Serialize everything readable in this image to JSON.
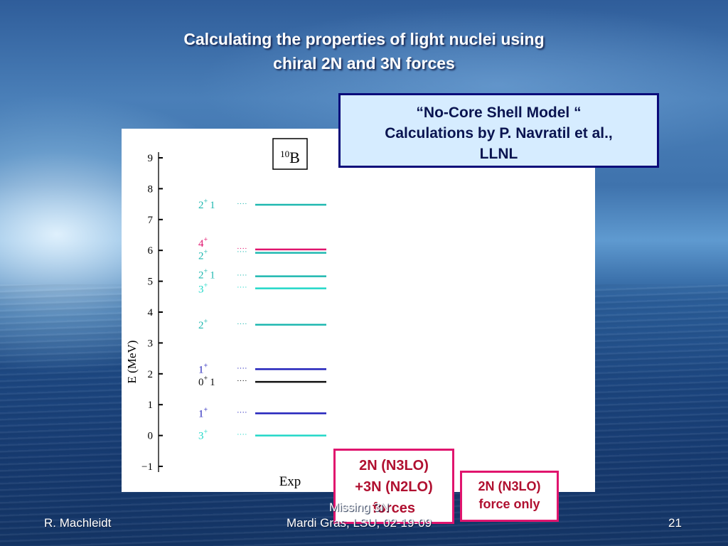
{
  "slide": {
    "title_line1": "Calculating the properties of light nuclei using",
    "title_line2": "chiral 2N and 3N forces",
    "callout_line1": "“No-Core Shell Model “",
    "callout_line2": "Calculations by P. Navratil et al.,",
    "callout_line3": "LLNL",
    "box1_line1": "2N (N3LO)",
    "box1_line2": "+3N (N2LO)",
    "box1_line3": "forces",
    "box2_line1": "2N (N3LO)",
    "box2_line2": "force only",
    "footer_left": "R. Machleidt",
    "footer_mid_line1": "Missing 3N",
    "footer_mid_line2": "Mardi Gras, LSU, 02-19-09",
    "footer_right": "21"
  },
  "chart_data": {
    "type": "level-scheme",
    "nucleus_label": "10B",
    "ylabel": "E (MeV)",
    "xlabel": "Exp",
    "ylim": [
      -1,
      9
    ],
    "yticks": [
      -1,
      0,
      1,
      2,
      3,
      4,
      5,
      6,
      7,
      8,
      9
    ],
    "levels": [
      {
        "energy": 0.0,
        "j": "3",
        "parity": "+",
        "t": "",
        "color": "#22d8c8"
      },
      {
        "energy": 0.72,
        "j": "1",
        "parity": "+",
        "t": "",
        "color": "#2222bb"
      },
      {
        "energy": 1.74,
        "j": "0",
        "parity": "+",
        "t": "1",
        "color": "#111111"
      },
      {
        "energy": 2.15,
        "j": "1",
        "parity": "+",
        "t": "",
        "color": "#2222bb"
      },
      {
        "energy": 3.59,
        "j": "2",
        "parity": "+",
        "t": "",
        "color": "#1fb8b0"
      },
      {
        "energy": 4.77,
        "j": "3",
        "parity": "+",
        "t": "",
        "color": "#22d8c8"
      },
      {
        "energy": 5.16,
        "j": "2",
        "parity": "+",
        "t": "1",
        "color": "#1fb8b0"
      },
      {
        "energy": 5.92,
        "j": "2",
        "parity": "+",
        "t": "",
        "color": "#1fb8b0"
      },
      {
        "energy": 6.03,
        "j": "4",
        "parity": "+",
        "t": "",
        "color": "#e0156e"
      },
      {
        "energy": 7.48,
        "j": "2",
        "parity": "+",
        "t": "1",
        "color": "#1fb8b0"
      }
    ]
  }
}
